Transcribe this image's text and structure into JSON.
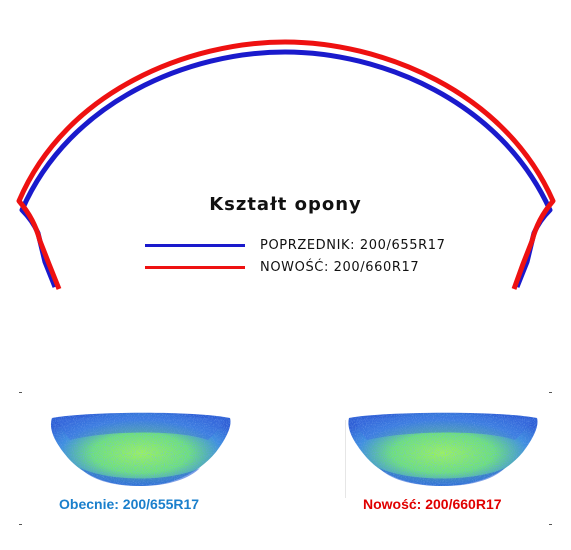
{
  "title": "Kształt opony",
  "legend": [
    {
      "label": "POPRZEDNIK: 200/655R17",
      "color": "#1a1acc"
    },
    {
      "label": "NOWOŚĆ: 200/660R17",
      "color": "#ee1111"
    }
  ],
  "footprints": {
    "left_caption": "Obecnie: 200/655R17",
    "right_caption": "Nowość: 200/660R17",
    "left_caption_color": "#1a7fcc",
    "right_caption_color": "#e00000"
  },
  "colors": {
    "previous_profile": "#1a1acc",
    "new_profile": "#ee1111",
    "footprint_blue": "#2a5fd6",
    "footprint_green": "#8ef050"
  }
}
